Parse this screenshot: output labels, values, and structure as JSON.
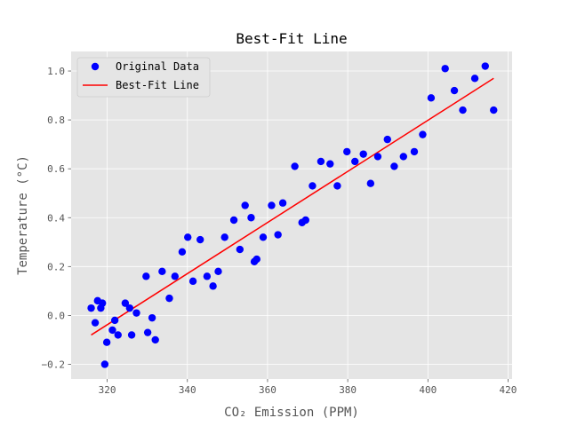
{
  "chart_data": {
    "type": "scatter",
    "title": "Best-Fit Line",
    "xlabel": "CO₂ Emission (PPM)",
    "ylabel": "Temperature (°C)",
    "xlim": [
      311,
      421
    ],
    "ylim": [
      -0.26,
      1.08
    ],
    "xticks": [
      320,
      340,
      360,
      380,
      400,
      420
    ],
    "yticks": [
      -0.2,
      0.0,
      0.2,
      0.4,
      0.6,
      0.8,
      1.0
    ],
    "ytick_labels": [
      "−0.2",
      "0.0",
      "0.2",
      "0.4",
      "0.6",
      "0.8",
      "1.0"
    ],
    "grid": true,
    "legend": {
      "position": "top-left"
    },
    "series": [
      {
        "name": "Original Data",
        "kind": "scatter",
        "color": "#0000ff",
        "points": [
          [
            316.0,
            0.03
          ],
          [
            317.0,
            -0.03
          ],
          [
            317.6,
            0.06
          ],
          [
            318.4,
            0.03
          ],
          [
            318.8,
            0.05
          ],
          [
            319.4,
            -0.2
          ],
          [
            319.9,
            -0.11
          ],
          [
            321.3,
            -0.06
          ],
          [
            321.9,
            -0.02
          ],
          [
            322.7,
            -0.08
          ],
          [
            324.5,
            0.05
          ],
          [
            325.6,
            0.03
          ],
          [
            326.1,
            -0.08
          ],
          [
            327.3,
            0.01
          ],
          [
            329.7,
            0.16
          ],
          [
            330.1,
            -0.07
          ],
          [
            331.2,
            -0.01
          ],
          [
            332.0,
            -0.1
          ],
          [
            333.7,
            0.18
          ],
          [
            335.5,
            0.07
          ],
          [
            336.9,
            0.16
          ],
          [
            338.7,
            0.26
          ],
          [
            340.1,
            0.32
          ],
          [
            341.4,
            0.14
          ],
          [
            343.2,
            0.31
          ],
          [
            344.9,
            0.16
          ],
          [
            346.4,
            0.12
          ],
          [
            347.7,
            0.18
          ],
          [
            349.3,
            0.32
          ],
          [
            351.6,
            0.39
          ],
          [
            353.1,
            0.27
          ],
          [
            354.4,
            0.45
          ],
          [
            355.9,
            0.4
          ],
          [
            356.7,
            0.22
          ],
          [
            357.3,
            0.23
          ],
          [
            358.9,
            0.32
          ],
          [
            361.0,
            0.45
          ],
          [
            362.6,
            0.33
          ],
          [
            363.8,
            0.46
          ],
          [
            366.8,
            0.61
          ],
          [
            368.6,
            0.38
          ],
          [
            369.5,
            0.39
          ],
          [
            371.2,
            0.53
          ],
          [
            373.3,
            0.63
          ],
          [
            375.6,
            0.62
          ],
          [
            377.4,
            0.53
          ],
          [
            379.8,
            0.67
          ],
          [
            381.8,
            0.63
          ],
          [
            383.9,
            0.66
          ],
          [
            385.7,
            0.54
          ],
          [
            387.5,
            0.65
          ],
          [
            389.9,
            0.72
          ],
          [
            391.6,
            0.61
          ],
          [
            393.9,
            0.65
          ],
          [
            396.6,
            0.67
          ],
          [
            398.7,
            0.74
          ],
          [
            400.8,
            0.89
          ],
          [
            404.3,
            1.01
          ],
          [
            406.6,
            0.92
          ],
          [
            408.7,
            0.84
          ],
          [
            411.7,
            0.97
          ],
          [
            414.3,
            1.02
          ],
          [
            416.4,
            0.84
          ]
        ]
      },
      {
        "name": "Best-Fit Line",
        "kind": "line",
        "color": "#ff0000",
        "points": [
          [
            316.0,
            -0.08
          ],
          [
            416.4,
            0.97
          ]
        ]
      }
    ]
  }
}
